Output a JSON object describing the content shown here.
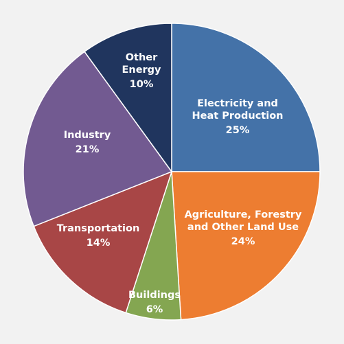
{
  "chart_data": {
    "type": "pie",
    "start_angle_deg": 0,
    "direction": "clockwise",
    "slices": [
      {
        "label_lines": [
          "Electricity and",
          "Heat Production"
        ],
        "value": 25,
        "value_label": "25%",
        "color": "#4472a8"
      },
      {
        "label_lines": [
          "Agriculture, Forestry",
          "and Other Land Use"
        ],
        "value": 24,
        "value_label": "24%",
        "color": "#ed7d31"
      },
      {
        "label_lines": [
          "Buildings"
        ],
        "value": 6,
        "value_label": "6%",
        "color": "#84a651"
      },
      {
        "label_lines": [
          "Transportation"
        ],
        "value": 14,
        "value_label": "14%",
        "color": "#a84646"
      },
      {
        "label_lines": [
          "Industry"
        ],
        "value": 21,
        "value_label": "21%",
        "color": "#725a91"
      },
      {
        "label_lines": [
          "Other",
          "Energy"
        ],
        "value": 10,
        "value_label": "10%",
        "color": "#20355e"
      }
    ]
  }
}
